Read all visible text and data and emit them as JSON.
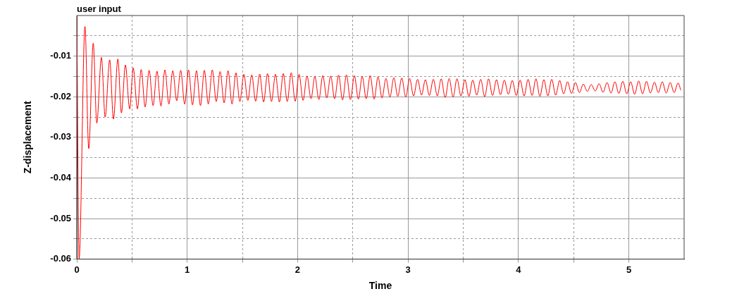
{
  "chart_data": {
    "type": "line",
    "title": "user input",
    "xlabel": "Time",
    "ylabel": "Z-displacement",
    "xlim": [
      0,
      5.5
    ],
    "ylim": [
      -0.06,
      0
    ],
    "xticks": [
      0,
      {
        "value": 0.5,
        "label": null
      },
      1,
      {
        "value": 1.5,
        "label": null
      },
      2,
      {
        "value": 2.5,
        "label": null
      },
      3,
      {
        "value": 3.5,
        "label": null
      },
      4,
      {
        "value": 4.5,
        "label": null
      },
      5
    ],
    "yticks": [
      -0.06,
      {
        "value": -0.055,
        "label": null
      },
      -0.05,
      {
        "value": -0.045,
        "label": null
      },
      -0.04,
      {
        "value": -0.035,
        "label": null
      },
      -0.03,
      {
        "value": -0.025,
        "label": null
      },
      -0.02,
      {
        "value": -0.015,
        "label": null
      },
      -0.01,
      {
        "value": -0.005,
        "label": null
      }
    ],
    "grid": true,
    "legend": false,
    "marker": "none",
    "line_style": "solid",
    "series": [
      {
        "color": "#ff0000",
        "x": [
          0,
          0.021,
          0.074,
          0.108,
          0.149,
          0.181,
          0.223,
          0.257,
          0.298,
          0.332,
          0.372,
          0.404,
          0.44,
          0.479,
          0.511,
          0.549,
          0.583,
          0.619,
          0.655,
          0.691,
          0.726,
          0.762,
          0.798,
          0.834,
          0.869,
          0.905,
          0.941,
          0.977,
          1.012,
          1.048,
          1.084,
          1.12,
          1.155,
          1.191,
          1.227,
          1.263,
          1.298,
          1.334,
          1.37,
          1.406,
          1.441,
          1.477,
          1.513,
          1.549,
          1.584,
          1.62,
          1.656,
          1.692,
          1.727,
          1.763,
          1.799,
          1.835,
          1.87,
          1.906,
          1.942,
          1.978,
          2.013,
          2.049,
          2.085,
          2.121,
          2.156,
          2.192,
          2.228,
          2.264,
          2.299,
          2.335,
          2.371,
          2.407,
          2.442,
          2.478,
          2.514,
          2.55,
          2.585,
          2.621,
          2.657,
          2.693,
          2.728,
          2.764,
          2.8,
          2.836,
          2.871,
          2.907,
          2.943,
          2.979,
          3.014,
          3.05,
          3.086,
          3.122,
          3.157,
          3.193,
          3.229,
          3.265,
          3.3,
          3.336,
          3.372,
          3.408,
          3.443,
          3.479,
          3.515,
          3.551,
          3.586,
          3.622,
          3.658,
          3.694,
          3.729,
          3.765,
          3.801,
          3.837,
          3.872,
          3.908,
          3.944,
          3.98,
          4.015,
          4.051,
          4.087,
          4.123,
          4.158,
          4.194,
          4.23,
          4.266,
          4.301,
          4.337,
          4.373,
          4.409,
          4.444,
          4.48,
          4.516,
          4.552,
          4.587,
          4.623,
          4.659,
          4.695,
          4.73,
          4.766,
          4.802,
          4.838,
          4.873,
          4.909,
          4.945,
          4.981,
          5.016,
          5.052,
          5.088,
          5.124,
          5.159,
          5.195,
          5.231,
          5.267,
          5.302,
          5.338,
          5.374,
          5.41,
          5.445,
          5.47
        ],
        "values": [
          0,
          -0.06,
          -0.0027,
          -0.0328,
          -0.0068,
          -0.0265,
          -0.0103,
          -0.025,
          -0.0109,
          -0.0255,
          -0.0107,
          -0.024,
          -0.0122,
          -0.023,
          -0.0129,
          -0.023,
          -0.0133,
          -0.0225,
          -0.0135,
          -0.0222,
          -0.0137,
          -0.0223,
          -0.0134,
          -0.0218,
          -0.0136,
          -0.021,
          -0.0135,
          -0.0218,
          -0.0134,
          -0.022,
          -0.0136,
          -0.0222,
          -0.0135,
          -0.0218,
          -0.0134,
          -0.0212,
          -0.0138,
          -0.0215,
          -0.0136,
          -0.0218,
          -0.0141,
          -0.0212,
          -0.0145,
          -0.0209,
          -0.0146,
          -0.0211,
          -0.0144,
          -0.0213,
          -0.0143,
          -0.0212,
          -0.0145,
          -0.0213,
          -0.0143,
          -0.0212,
          -0.0141,
          -0.0211,
          -0.0145,
          -0.0209,
          -0.0149,
          -0.0205,
          -0.015,
          -0.0207,
          -0.0148,
          -0.0203,
          -0.0149,
          -0.0205,
          -0.0147,
          -0.0208,
          -0.0146,
          -0.0207,
          -0.0148,
          -0.0206,
          -0.015,
          -0.0205,
          -0.0148,
          -0.0206,
          -0.0151,
          -0.0203,
          -0.0155,
          -0.0201,
          -0.0153,
          -0.0199,
          -0.0154,
          -0.0201,
          -0.0155,
          -0.0198,
          -0.0157,
          -0.0196,
          -0.0158,
          -0.0197,
          -0.0157,
          -0.0198,
          -0.0156,
          -0.0202,
          -0.0155,
          -0.0201,
          -0.0156,
          -0.0198,
          -0.0158,
          -0.0199,
          -0.0159,
          -0.0196,
          -0.0157,
          -0.02,
          -0.0156,
          -0.0197,
          -0.0158,
          -0.0195,
          -0.0159,
          -0.0194,
          -0.016,
          -0.0197,
          -0.0159,
          -0.0198,
          -0.0157,
          -0.0197,
          -0.0156,
          -0.0199,
          -0.0158,
          -0.0198,
          -0.0157,
          -0.0196,
          -0.016,
          -0.0193,
          -0.0163,
          -0.0192,
          -0.0165,
          -0.019,
          -0.0169,
          -0.0187,
          -0.017,
          -0.0186,
          -0.0168,
          -0.0189,
          -0.0165,
          -0.0191,
          -0.0163,
          -0.0192,
          -0.0162,
          -0.0193,
          -0.0163,
          -0.0194,
          -0.0161,
          -0.0193,
          -0.0162,
          -0.0191,
          -0.0164,
          -0.019,
          -0.0163,
          -0.0191,
          -0.0165,
          -0.019,
          -0.0166,
          -0.0184
        ]
      }
    ]
  }
}
